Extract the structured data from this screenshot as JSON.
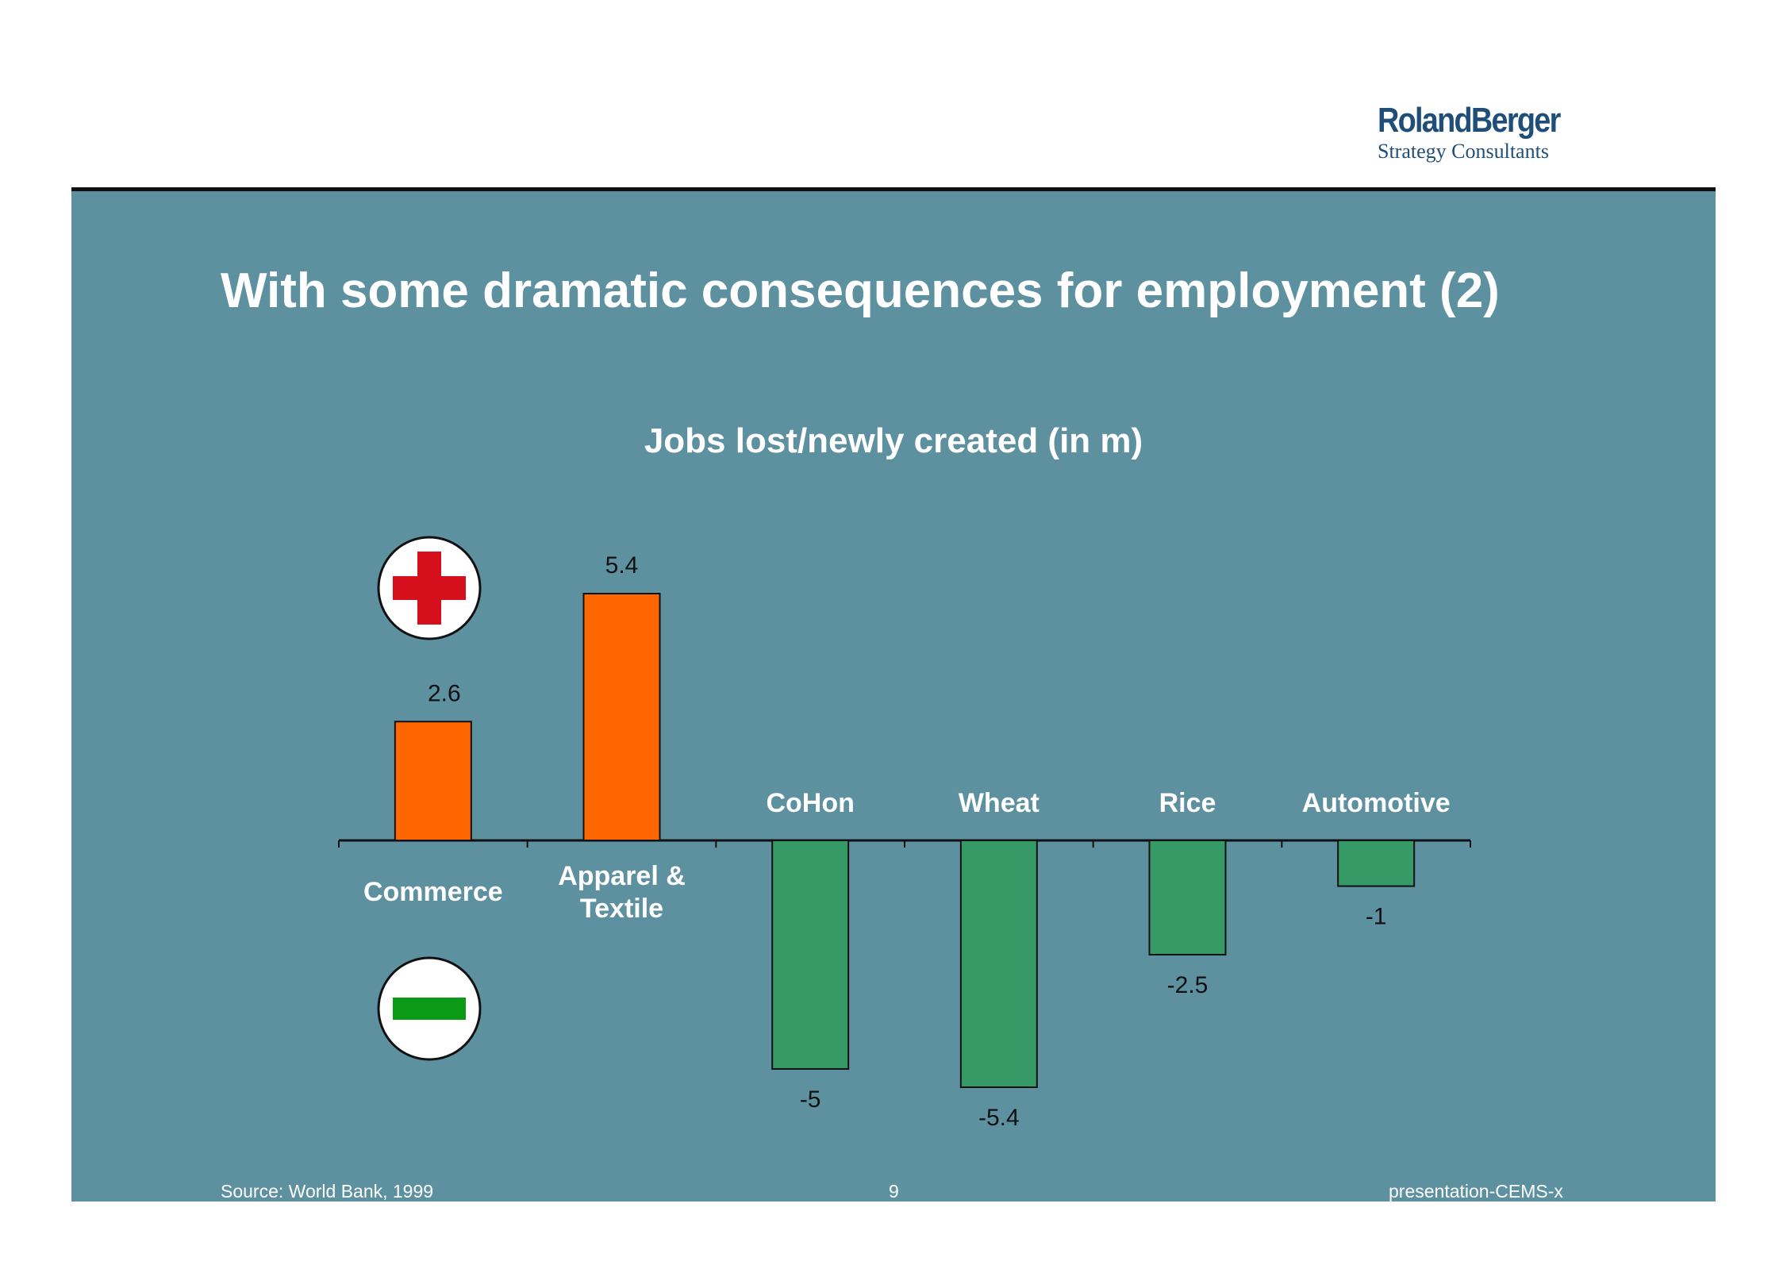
{
  "logo": {
    "brand": "RolandBerger",
    "tagline": "Strategy Consultants"
  },
  "slide": {
    "title": "With some dramatic consequences for employment (2)"
  },
  "footer": {
    "source": "Source: World Bank, 1999",
    "page_number": "9",
    "file_name": "presentation-CEMS-x"
  },
  "colors": {
    "panel": "#5e91a0",
    "positive_bar": "#ff6600",
    "negative_bar": "#359a66",
    "plus_symbol": "#d50f1b",
    "minus_symbol": "#0a9a16"
  },
  "icons": {
    "positive": "plus-icon",
    "negative": "minus-icon"
  },
  "chart_data": {
    "type": "bar",
    "title": "Jobs lost/newly created (in m)",
    "categories": [
      "Commerce",
      "Apparel & Textile",
      "CoHon",
      "Wheat",
      "Rice",
      "Automotive"
    ],
    "values": [
      2.6,
      5.4,
      -5,
      -5.4,
      -2.5,
      -1
    ],
    "value_labels": [
      "2.6",
      "5.4",
      "-5",
      "-5.4",
      "-2.5",
      "-1"
    ],
    "ylim": [
      -5.4,
      5.4
    ],
    "grid": false,
    "legend": "none"
  }
}
